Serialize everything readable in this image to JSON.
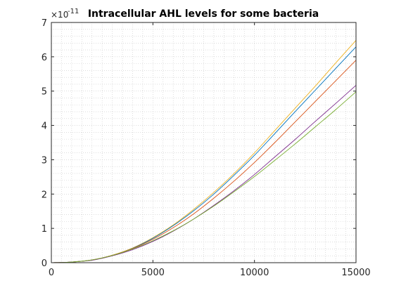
{
  "chart_data": {
    "type": "line",
    "title": "Intracellular AHL levels for some bacteria",
    "xlabel": "",
    "ylabel": "",
    "xlim": [
      0,
      15000
    ],
    "ylim": [
      0,
      7
    ],
    "y_scale_exponent_label": "×10",
    "y_scale_exponent": "-11",
    "x_ticks": [
      0,
      5000,
      10000,
      15000
    ],
    "y_ticks": [
      0,
      1,
      2,
      3,
      4,
      5,
      6,
      7
    ],
    "grid": "minor dotted",
    "x": [
      0,
      1000,
      2000,
      3000,
      4000,
      5000,
      6000,
      7000,
      8000,
      9000,
      10000,
      11000,
      12000,
      13000,
      14000,
      15000
    ],
    "series": [
      {
        "color": "#EDB120",
        "values": [
          0,
          0.02,
          0.08,
          0.22,
          0.43,
          0.73,
          1.1,
          1.55,
          2.05,
          2.6,
          3.2,
          3.85,
          4.5,
          5.15,
          5.82,
          6.48
        ]
      },
      {
        "color": "#0072BD",
        "values": [
          0,
          0.02,
          0.08,
          0.21,
          0.42,
          0.71,
          1.08,
          1.51,
          2.0,
          2.55,
          3.13,
          3.76,
          4.4,
          5.03,
          5.66,
          6.29
        ]
      },
      {
        "color": "#D95319",
        "values": [
          0,
          0.02,
          0.08,
          0.21,
          0.41,
          0.68,
          1.02,
          1.42,
          1.88,
          2.38,
          2.92,
          3.5,
          4.1,
          4.7,
          5.3,
          5.9
        ]
      },
      {
        "color": "#7E2F8E",
        "values": [
          0,
          0.02,
          0.07,
          0.2,
          0.38,
          0.62,
          0.92,
          1.27,
          1.67,
          2.1,
          2.57,
          3.08,
          3.59,
          4.12,
          4.64,
          5.17
        ]
      },
      {
        "color": "#77AC30",
        "values": [
          0,
          0.02,
          0.08,
          0.21,
          0.4,
          0.64,
          0.93,
          1.27,
          1.65,
          2.07,
          2.51,
          2.98,
          3.46,
          3.96,
          4.46,
          4.98
        ]
      }
    ]
  }
}
